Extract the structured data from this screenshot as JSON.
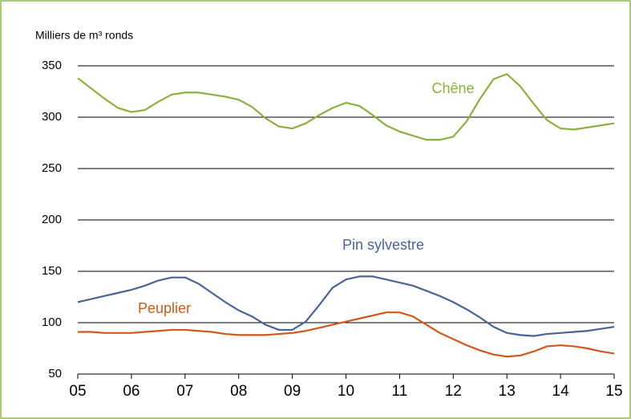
{
  "chart_data": {
    "type": "line",
    "y_axis_label": "Milliers de m³ ronds",
    "x": [
      5,
      5.25,
      5.5,
      5.75,
      6,
      6.25,
      6.5,
      6.75,
      7,
      7.25,
      7.5,
      7.75,
      8,
      8.25,
      8.5,
      8.75,
      9,
      9.25,
      9.5,
      9.75,
      10,
      10.25,
      10.5,
      10.75,
      11,
      11.25,
      11.5,
      11.75,
      12,
      12.25,
      12.5,
      12.75,
      13,
      13.25,
      13.5,
      13.75,
      14,
      14.25,
      14.5,
      14.75,
      15
    ],
    "series": [
      {
        "name": "Chêne",
        "color": "#8cb040",
        "values": [
          338,
          328,
          318,
          309,
          305,
          307,
          315,
          322,
          324,
          324,
          322,
          320,
          317,
          310,
          299,
          291,
          289,
          294,
          302,
          309,
          314,
          311,
          302,
          292,
          286,
          282,
          278,
          278,
          281,
          296,
          318,
          337,
          342,
          330,
          313,
          297,
          289,
          288,
          290,
          292,
          294
        ]
      },
      {
        "name": "Pin sylvestre",
        "color": "#4a6494",
        "values": [
          120,
          123,
          126,
          129,
          132,
          136,
          141,
          144,
          144,
          138,
          129,
          120,
          112,
          106,
          98,
          93,
          93,
          101,
          117,
          134,
          142,
          145,
          145,
          142,
          139,
          136,
          131,
          126,
          120,
          113,
          105,
          96,
          90,
          88,
          87,
          89,
          90,
          91,
          92,
          94,
          96
        ]
      },
      {
        "name": "Peuplier",
        "color": "#d0581c",
        "values": [
          91,
          91,
          90,
          90,
          90,
          91,
          92,
          93,
          93,
          92,
          91,
          89,
          88,
          88,
          88,
          89,
          90,
          92,
          95,
          98,
          101,
          104,
          107,
          110,
          110,
          106,
          98,
          90,
          84,
          78,
          73,
          69,
          67,
          68,
          72,
          77,
          78,
          77,
          75,
          72,
          70
        ]
      }
    ],
    "xlim": [
      5,
      15
    ],
    "xticks": [
      {
        "value": 5,
        "label": "05"
      },
      {
        "value": 6,
        "label": "06"
      },
      {
        "value": 7,
        "label": "07"
      },
      {
        "value": 8,
        "label": "08"
      },
      {
        "value": 9,
        "label": "09"
      },
      10,
      11,
      12,
      13,
      14,
      15
    ],
    "ylim": [
      50,
      350
    ],
    "yticks": [
      50,
      100,
      150,
      200,
      250,
      300,
      350
    ],
    "grid": true
  }
}
